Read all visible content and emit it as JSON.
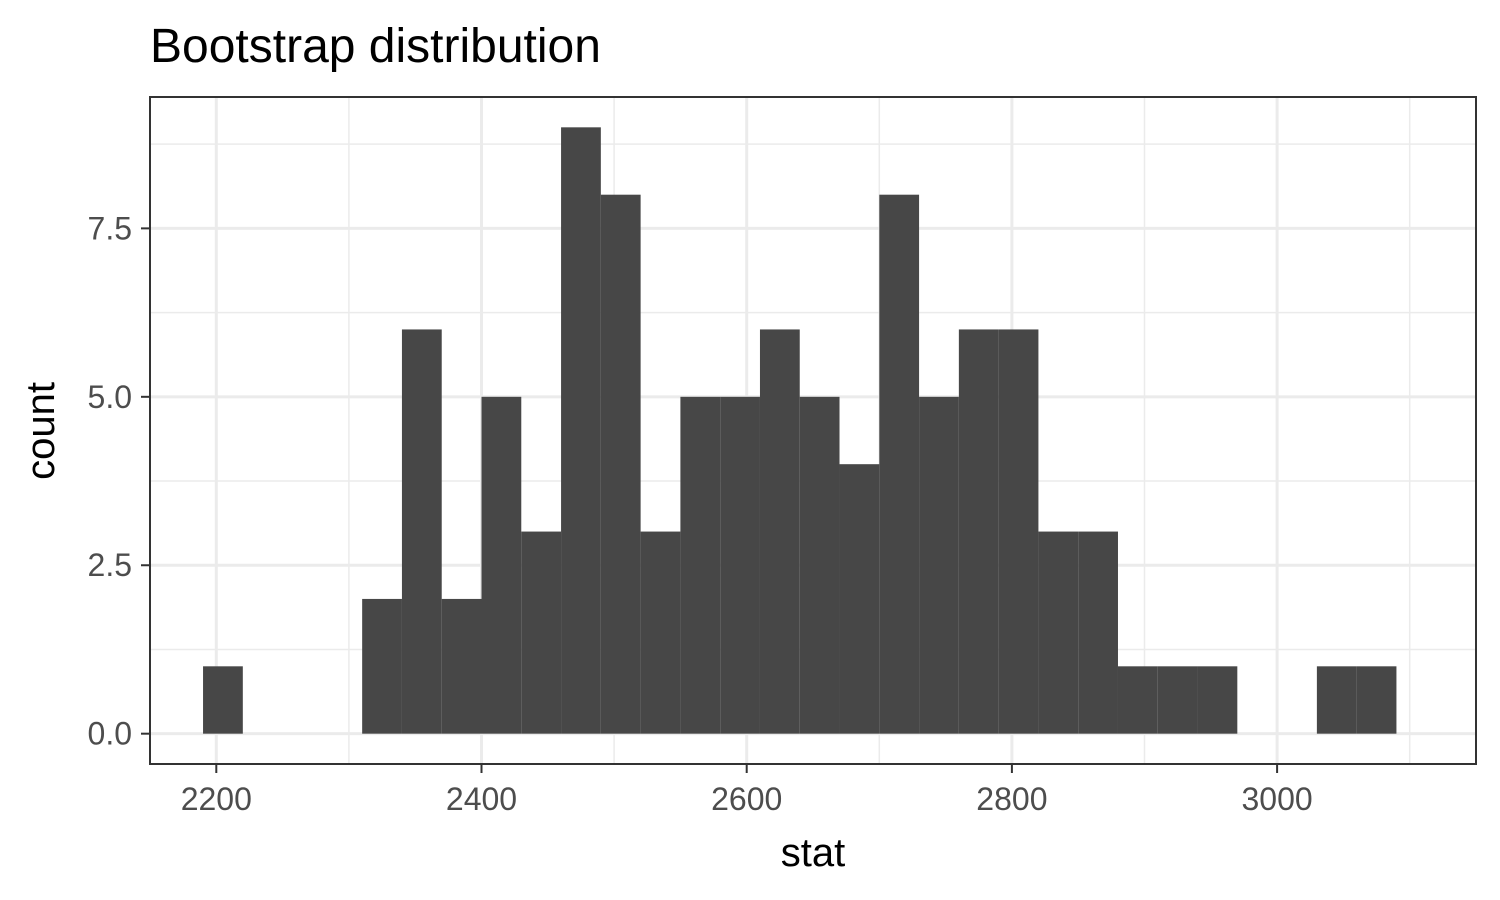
{
  "chart_data": {
    "type": "bar",
    "title": "Bootstrap distribution",
    "xlabel": "stat",
    "ylabel": "count",
    "bin_width": 30,
    "bins": [
      {
        "x": 2205,
        "count": 1
      },
      {
        "x": 2325,
        "count": 2
      },
      {
        "x": 2355,
        "count": 6
      },
      {
        "x": 2385,
        "count": 2
      },
      {
        "x": 2415,
        "count": 5
      },
      {
        "x": 2445,
        "count": 3
      },
      {
        "x": 2475,
        "count": 9
      },
      {
        "x": 2505,
        "count": 8
      },
      {
        "x": 2535,
        "count": 3
      },
      {
        "x": 2565,
        "count": 5
      },
      {
        "x": 2595,
        "count": 5
      },
      {
        "x": 2625,
        "count": 6
      },
      {
        "x": 2655,
        "count": 5
      },
      {
        "x": 2685,
        "count": 4
      },
      {
        "x": 2715,
        "count": 8
      },
      {
        "x": 2745,
        "count": 5
      },
      {
        "x": 2775,
        "count": 6
      },
      {
        "x": 2805,
        "count": 6
      },
      {
        "x": 2835,
        "count": 3
      },
      {
        "x": 2865,
        "count": 3
      },
      {
        "x": 2895,
        "count": 1
      },
      {
        "x": 2925,
        "count": 1
      },
      {
        "x": 2955,
        "count": 1
      },
      {
        "x": 3045,
        "count": 1
      },
      {
        "x": 3075,
        "count": 1
      }
    ],
    "xlim": [
      2150,
      3150
    ],
    "ylim": [
      -0.45,
      9.45
    ],
    "x_ticks": [
      2200,
      2400,
      2600,
      2800,
      3000
    ],
    "x_tick_labels": [
      "2200",
      "2400",
      "2600",
      "2800",
      "3000"
    ],
    "y_ticks": [
      0,
      2.5,
      5,
      7.5
    ],
    "y_tick_labels": [
      "0.0",
      "2.5",
      "5.0",
      "7.5"
    ],
    "grid": true,
    "colors": {
      "bar": "#474747",
      "grid": "#ebebeb",
      "panel_border": "#333333"
    }
  }
}
